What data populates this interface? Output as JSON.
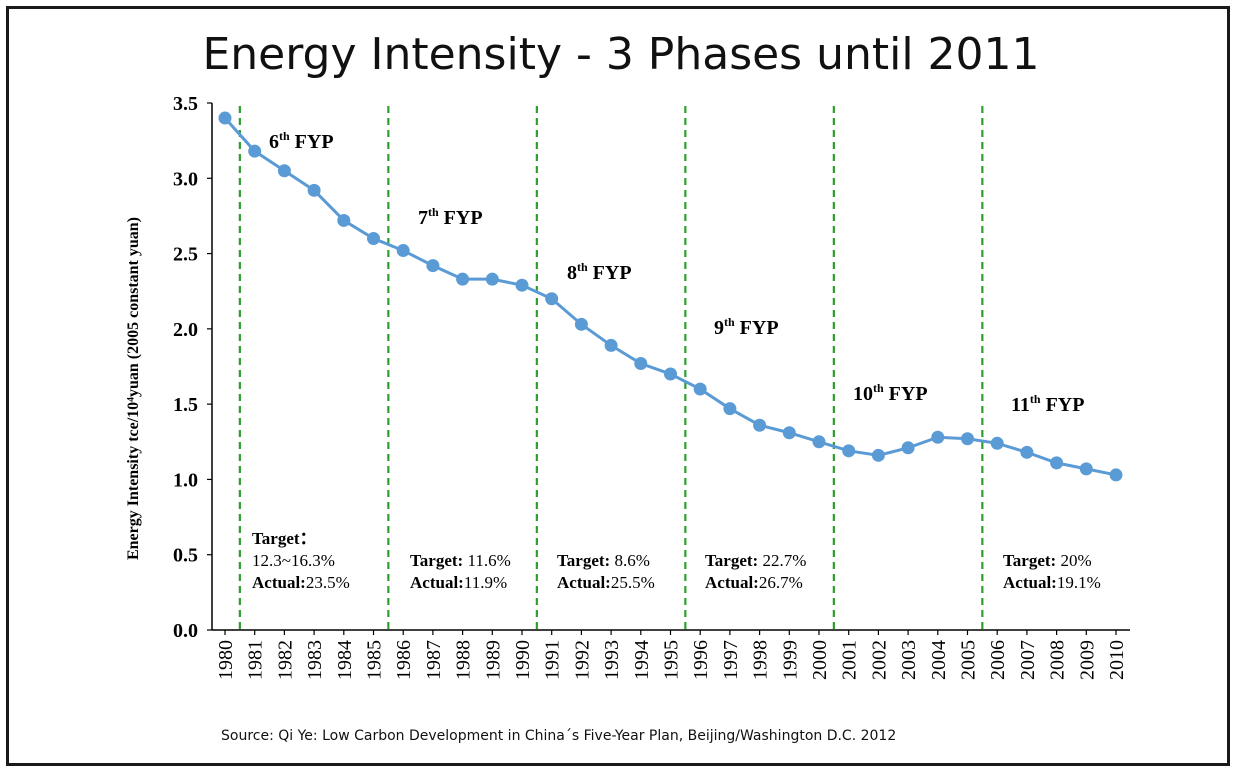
{
  "slide": {
    "title": "Energy Intensity - 3 Phases until 2011",
    "source": "Source: Qi Ye: Low Carbon Development in China´s  Five-Year Plan, Beijing/Washington D.C. 2012"
  },
  "chart_data": {
    "type": "line",
    "ylabel": "Energy Intensity tce/10⁴yuan (2005 constant  yuan)",
    "xlabel": "",
    "ylim": [
      0,
      3.5
    ],
    "yticks": [
      "0.0",
      "0.5",
      "1.0",
      "1.5",
      "2.0",
      "2.5",
      "3.0",
      "3.5"
    ],
    "ytick_values": [
      0,
      0.5,
      1.0,
      1.5,
      2.0,
      2.5,
      3.0,
      3.5
    ],
    "x": [
      "1980",
      "1981",
      "1982",
      "1983",
      "1984",
      "1985",
      "1986",
      "1987",
      "1988",
      "1989",
      "1990",
      "1991",
      "1992",
      "1993",
      "1994",
      "1995",
      "1996",
      "1997",
      "1998",
      "1999",
      "2000",
      "2001",
      "2002",
      "2003",
      "2004",
      "2005",
      "2006",
      "2007",
      "2008",
      "2009",
      "2010"
    ],
    "series": [
      {
        "values": [
          3.4,
          3.18,
          3.05,
          2.92,
          2.72,
          2.6,
          2.52,
          2.42,
          2.33,
          2.33,
          2.29,
          2.2,
          2.03,
          1.89,
          1.77,
          1.7,
          1.6,
          1.47,
          1.36,
          1.31,
          1.25,
          1.19,
          1.16,
          1.21,
          1.28,
          1.27,
          1.24,
          1.18,
          1.11,
          1.07,
          1.03
        ]
      }
    ],
    "color": "#5b9bd5",
    "divider_color": "#2ca02c",
    "grid": false,
    "phase_dividers": [
      1980.5,
      1985.5,
      1990.5,
      1995.5,
      2000.5,
      2005.5
    ],
    "phases": [
      {
        "num": "6",
        "sup": "th",
        "suffix": " FYP",
        "target": [
          "Target：",
          "12.3~16.3%"
        ],
        "actual": "Actual:23.5%"
      },
      {
        "num": "7",
        "sup": "th",
        "suffix": " FYP",
        "target": [
          "Target: 11.6%"
        ],
        "actual": "Actual:11.9%"
      },
      {
        "num": "8",
        "sup": "th",
        "suffix": " FYP",
        "target": [
          "Target: 8.6%"
        ],
        "actual": "Actual:25.5%"
      },
      {
        "num": "9",
        "sup": "th",
        "suffix": " FYP",
        "target": [
          "Target: 22.7%"
        ],
        "actual": "Actual:26.7%"
      },
      {
        "num": "10",
        "sup": "th",
        "suffix": " FYP",
        "target": [],
        "actual": ""
      },
      {
        "num": "11",
        "sup": "th",
        "suffix": " FYP",
        "target": [
          "Target: 20%"
        ],
        "actual": "Actual:19.1%"
      }
    ]
  }
}
